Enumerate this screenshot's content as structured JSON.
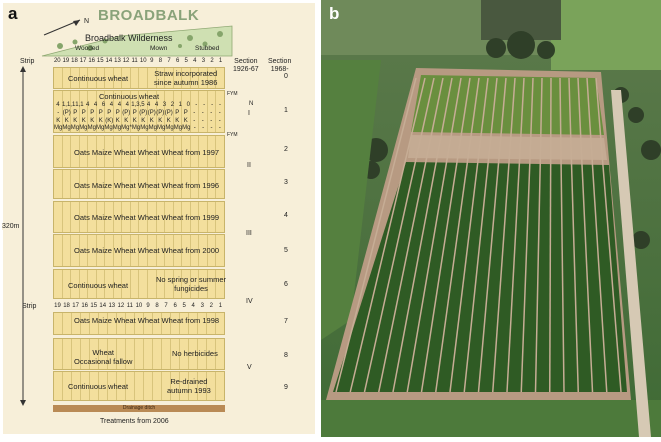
{
  "panel_a": {
    "letter": "a",
    "title": "BROADBALK",
    "north": "N",
    "wilderness": "Broadbalk Wilderness",
    "wooded": "Wooded",
    "mown": "Mown",
    "stubbed": "Stubbed",
    "strip_label": "Strip",
    "strip_numbers": [
      "20",
      "19",
      "18",
      "17",
      "16",
      "15",
      "14",
      "13",
      "12",
      "11",
      "10",
      "9",
      "8",
      "7",
      "6",
      "5",
      "4",
      "3",
      "2",
      "1"
    ],
    "strip_numbers_lower": [
      "19",
      "18",
      "17",
      "16",
      "15",
      "14",
      "13",
      "12",
      "11",
      "10",
      "9",
      "8",
      "7",
      "6",
      "5",
      "4",
      "3",
      "2",
      "1"
    ],
    "section_1926_header": "Section\n1926-67",
    "section_1968_header": "Section\n1968-",
    "row0": {
      "left": "Continuous wheat",
      "right": "Straw incorporated\nsince autumn 1986",
      "section": "0"
    },
    "row1": {
      "title": "Continuous wheat",
      "section": "1",
      "fym": "FYM",
      "n_label": "N"
    },
    "row1_n": [
      "4",
      "1,1,1",
      "1,1",
      "4",
      "4",
      "6",
      "4",
      "4",
      "4",
      "1,3,5",
      "4",
      "4",
      "3",
      "2",
      "1",
      "0",
      "-",
      "-",
      "-",
      "-"
    ],
    "row1_p": [
      "-",
      "(P)",
      "P",
      "P",
      "P",
      "P",
      "P",
      "P",
      "(P)",
      "P",
      "(P)",
      "(P)",
      "(P)",
      "(P)",
      "P",
      "P",
      "-",
      "-",
      "-",
      "-"
    ],
    "row1_k": [
      "K",
      "K",
      "K",
      "K",
      "K",
      "K",
      "(K)",
      "K",
      "K",
      "K",
      "K",
      "K",
      "K",
      "K",
      "K",
      "K",
      "-",
      "-",
      "-",
      "-"
    ],
    "row1_mg": [
      "Mg",
      "Mg",
      "Mg",
      "Mg",
      "Mg",
      "Mg",
      "Mg",
      "Mg",
      "Mg*",
      "Mg",
      "Mg",
      "Mg",
      "Mg",
      "Mg",
      "Mg",
      "Mg",
      "-",
      "-",
      "-",
      "-"
    ],
    "row2": {
      "label": "Oats Maize Wheat Wheat Wheat from 1997",
      "section": "2",
      "fym": "FYM"
    },
    "row3": {
      "label": "Oats Maize Wheat Wheat Wheat from 1996",
      "section": "3"
    },
    "row4": {
      "label": "Oats Maize Wheat Wheat Wheat from 1999",
      "section": "4"
    },
    "row5": {
      "label": "Oats Maize Wheat Wheat Wheat from 2000",
      "section": "5"
    },
    "row6": {
      "left": "Continuous wheat",
      "right": "No spring or summer\nfungicides",
      "section": "6"
    },
    "row7": {
      "label": "Oats Maize Wheat Wheat Wheat from 1998",
      "section": "7"
    },
    "row8": {
      "left": "Wheat\nOccasional fallow",
      "right": "No herbicides",
      "section": "8"
    },
    "row9": {
      "left": "Continuous wheat",
      "right": "Re-drained\nautumn 1993",
      "section": "9"
    },
    "old_sections": [
      "I",
      "II",
      "III",
      "IV",
      "V"
    ],
    "length": "320m",
    "drainage": "Drainage ditch",
    "footer": "Treatments  from 2006"
  },
  "panel_b": {
    "letter": "b"
  },
  "colors": {
    "block": "#f3df9d",
    "bg": "#f7efd9",
    "wilderness": "#cfe0b2",
    "title": "#8aa37a",
    "drain": "#b98a55"
  }
}
